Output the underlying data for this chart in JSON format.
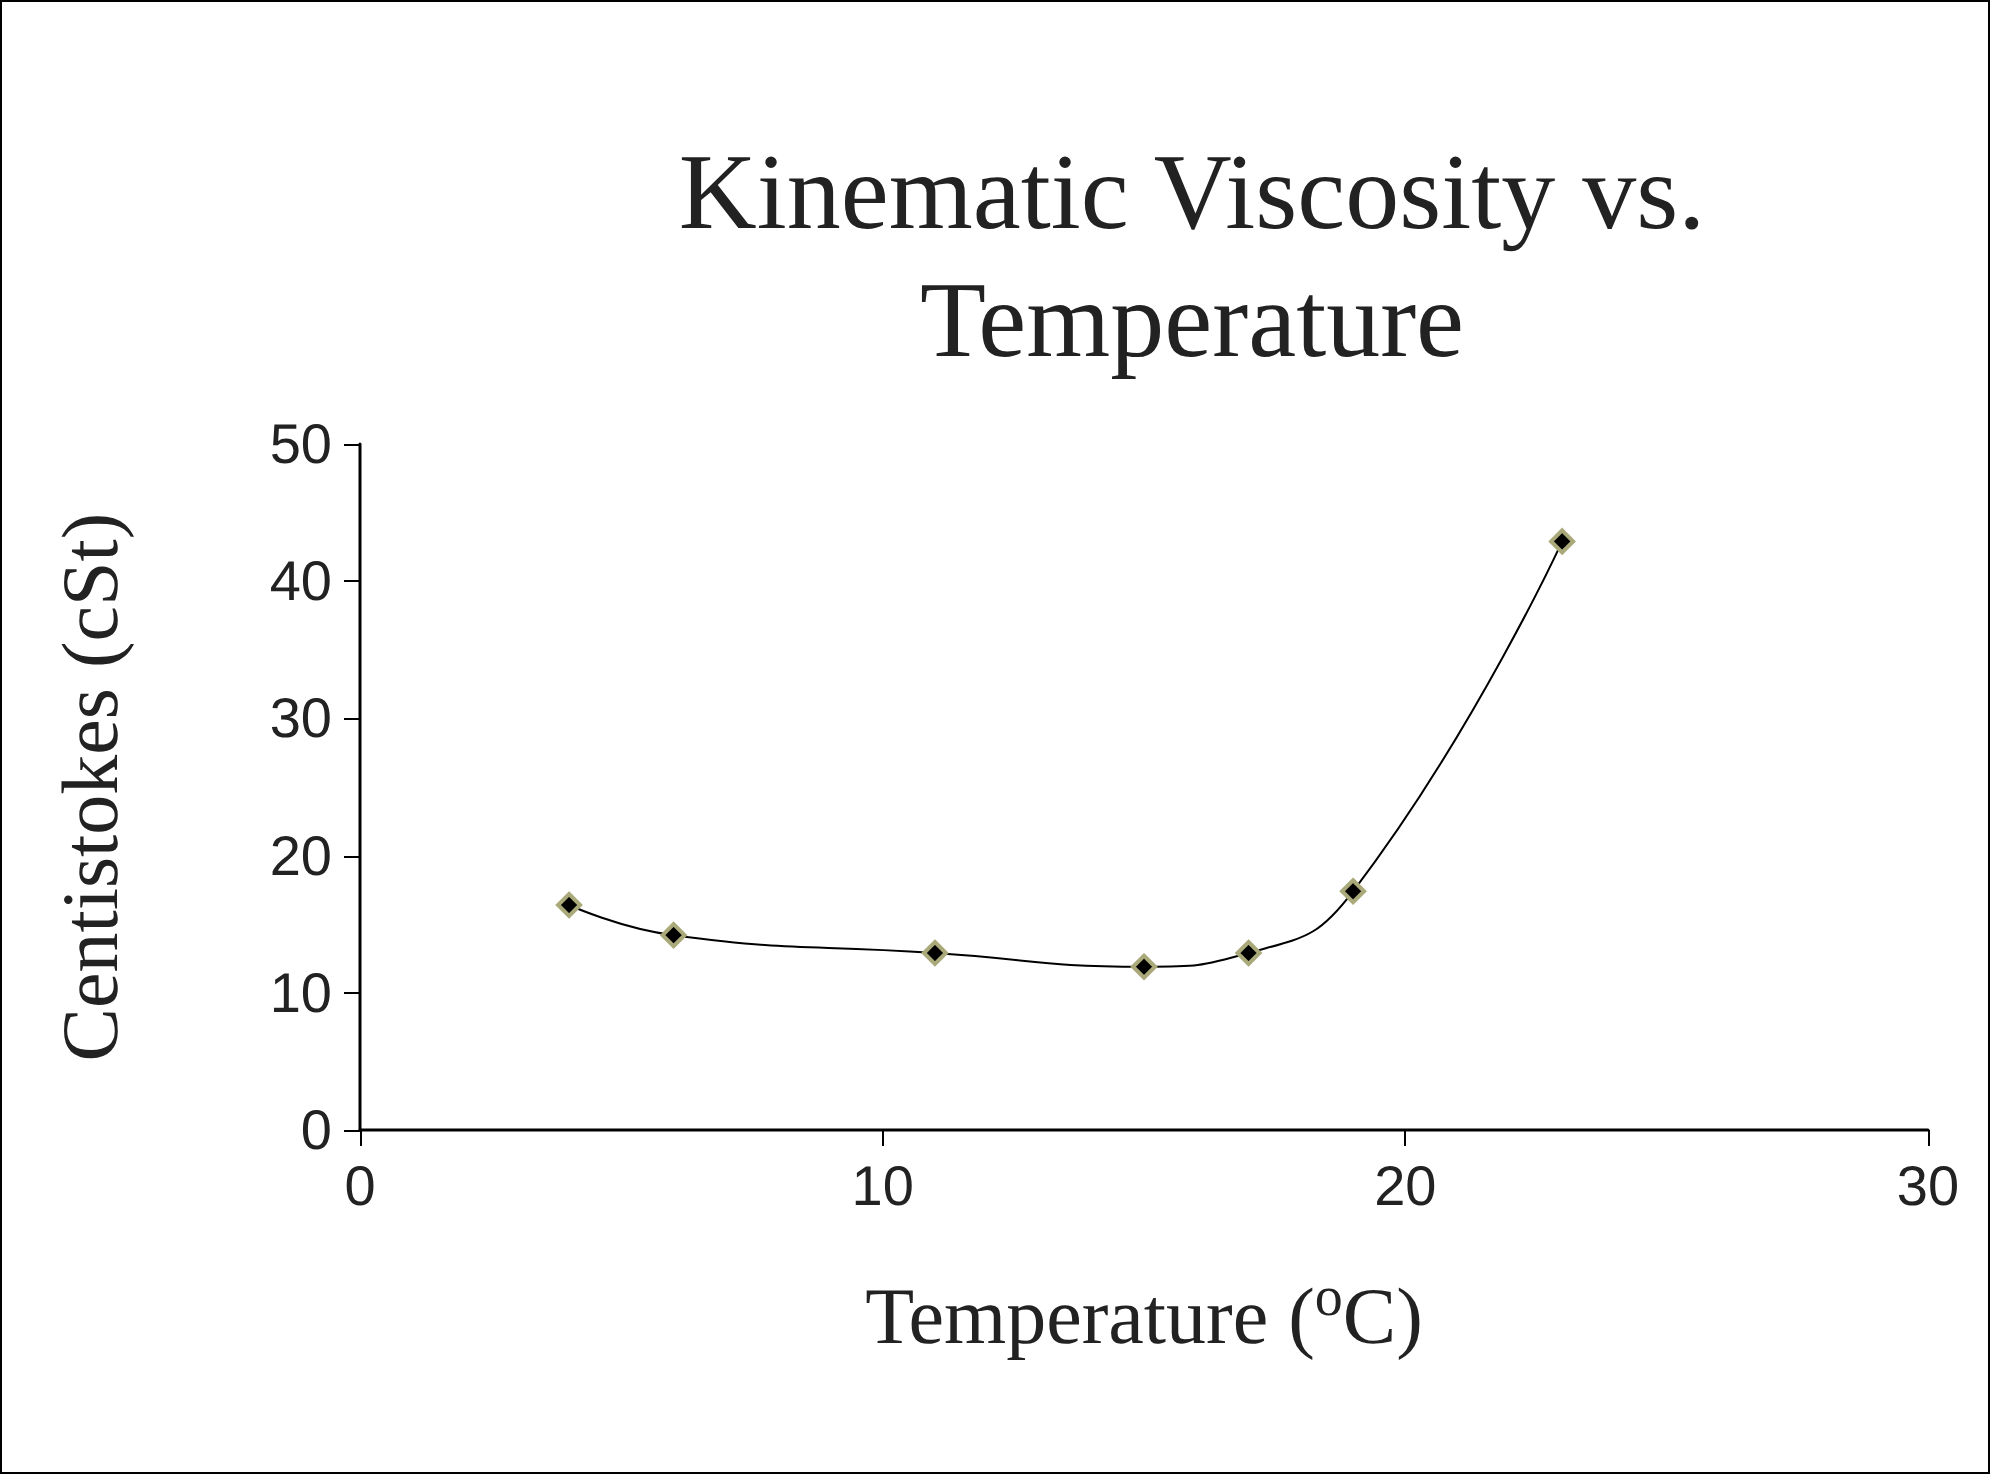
{
  "chart_data": {
    "type": "line",
    "title": "Kinematic Viscosity vs.\nTemperature",
    "xlabel": "Temperature ($^{o}$C)",
    "ylabel": "Centistokes (cSt)",
    "x": [
      4,
      6,
      11,
      15,
      17,
      19,
      23
    ],
    "series": [
      {
        "color": "#000000",
        "values": [
          16.4,
          14.2,
          12.9,
          11.9,
          12.9,
          17.4,
          42.9
        ]
      }
    ],
    "xlim": [
      0,
      30
    ],
    "xticks": [
      0,
      10,
      20,
      30
    ],
    "ylim": [
      0,
      50
    ],
    "yticks": [
      0,
      10,
      20,
      30,
      40,
      50
    ],
    "grid": false,
    "marker": "diamond",
    "line_style": "solid"
  }
}
